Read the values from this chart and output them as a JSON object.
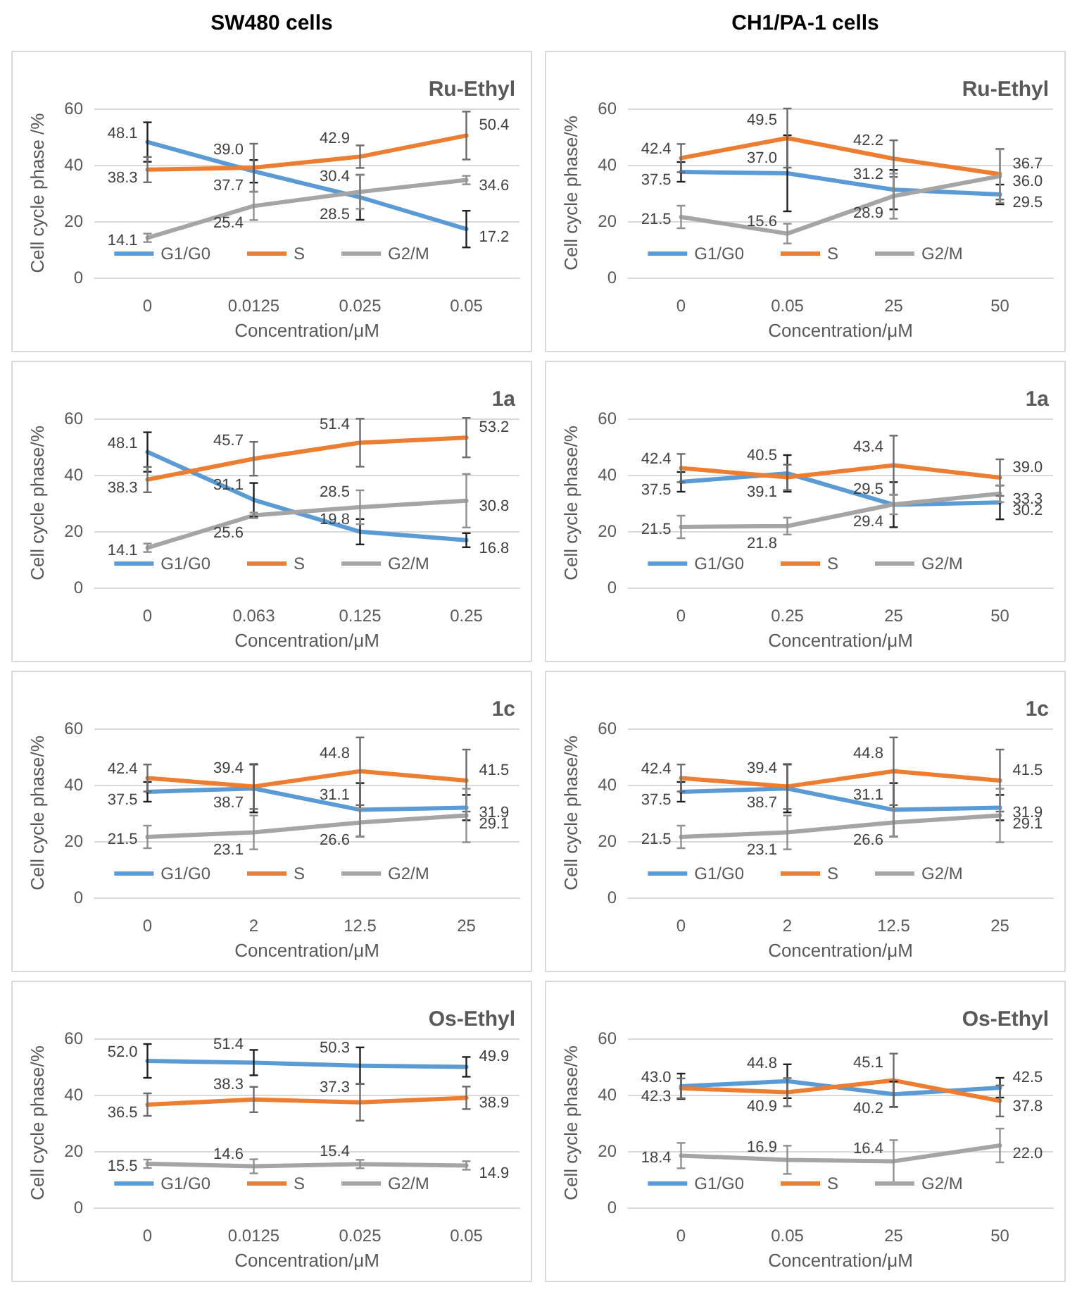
{
  "chart_data": [
    {
      "type": "line",
      "annotations": [
        "SW480 cells"
      ],
      "title": "Ru-Ethyl",
      "xlabel": "Concentration/μM",
      "ylabel": "Cell cycle phase /%",
      "categories": [
        "0",
        "0.0125",
        "0.025",
        "0.05"
      ],
      "ylim": [
        0,
        60
      ],
      "yticks": [
        0,
        20,
        40,
        60
      ],
      "grid": "y",
      "legend": "bottom",
      "marker": "none",
      "data_labels": true,
      "series": [
        {
          "name": "G1/G0",
          "color": "#5b9bd5",
          "values": [
            48.1,
            37.7,
            28.5,
            17.2
          ],
          "errors": [
            7,
            4,
            8,
            6.5
          ]
        },
        {
          "name": "S",
          "color": "#ed7d31",
          "values": [
            38.3,
            39.0,
            42.9,
            50.4
          ],
          "errors": [
            4.5,
            8.5,
            4,
            8.5
          ],
          "value_labels": [
            "38.3",
            "39.0",
            "42.9",
            "50.4"
          ]
        },
        {
          "name": "G2/M",
          "color": "#a5a5a5",
          "values": [
            14.1,
            25.4,
            30.4,
            34.6
          ],
          "errors": [
            1.5,
            5,
            6,
            1.5
          ]
        }
      ]
    },
    {
      "type": "line",
      "annotations": [
        "CH1/PA-1 cells"
      ],
      "title": "Ru-Ethyl",
      "xlabel": "Concentration/μM",
      "ylabel": "Cell cycle phase/%",
      "categories": [
        "0",
        "0.05",
        "25",
        "50"
      ],
      "ylim": [
        0,
        60
      ],
      "yticks": [
        0,
        20,
        40,
        60
      ],
      "grid": "y",
      "legend": "bottom",
      "marker": "none",
      "data_labels": true,
      "series": [
        {
          "name": "G1/G0",
          "color": "#5b9bd5",
          "values": [
            37.5,
            37.0,
            31.2,
            29.5
          ],
          "errors": [
            3.5,
            13.5,
            7,
            3.5
          ],
          "value_labels": [
            "37.5",
            "37.0",
            "31.2",
            "29.5"
          ]
        },
        {
          "name": "S",
          "color": "#ed7d31",
          "values": [
            42.4,
            49.5,
            42.2,
            36.7
          ],
          "errors": [
            5,
            10.5,
            6.5,
            9
          ]
        },
        {
          "name": "G2/M",
          "color": "#a5a5a5",
          "values": [
            21.5,
            15.6,
            28.9,
            36.0
          ],
          "errors": [
            4,
            3.5,
            8,
            9.5
          ],
          "value_labels": [
            "21.5",
            "15.6",
            "28.9",
            "36.0"
          ]
        }
      ]
    },
    {
      "type": "line",
      "title": "1a",
      "xlabel": "Concentration/μM",
      "ylabel": "Cell cycle phase/%",
      "categories": [
        "0",
        "0.063",
        "0.125",
        "0.25"
      ],
      "ylim": [
        0,
        60
      ],
      "yticks": [
        0,
        20,
        40,
        60
      ],
      "grid": "y",
      "legend": "bottom",
      "marker": "none",
      "data_labels": true,
      "series": [
        {
          "name": "G1/G0",
          "color": "#5b9bd5",
          "values": [
            48.1,
            31.1,
            19.8,
            16.8
          ],
          "errors": [
            7,
            6,
            4.5,
            2.5
          ]
        },
        {
          "name": "S",
          "color": "#ed7d31",
          "values": [
            38.3,
            45.7,
            51.4,
            53.2
          ],
          "errors": [
            4.5,
            6,
            8.5,
            7
          ]
        },
        {
          "name": "G2/M",
          "color": "#a5a5a5",
          "values": [
            14.1,
            25.6,
            28.5,
            30.8
          ],
          "errors": [
            1.5,
            1,
            6,
            9.5
          ]
        }
      ]
    },
    {
      "type": "line",
      "title": "1a",
      "xlabel": "Concentration/μM",
      "ylabel": "Cell cycle phase/%",
      "categories": [
        "0",
        "0.25",
        "25",
        "50"
      ],
      "ylim": [
        0,
        60
      ],
      "yticks": [
        0,
        20,
        40,
        60
      ],
      "grid": "y",
      "legend": "bottom",
      "marker": "none",
      "data_labels": true,
      "series": [
        {
          "name": "G1/G0",
          "color": "#5b9bd5",
          "values": [
            37.5,
            40.5,
            29.4,
            30.2
          ],
          "errors": [
            3.5,
            6.5,
            8,
            6
          ]
        },
        {
          "name": "S",
          "color": "#ed7d31",
          "values": [
            42.4,
            39.1,
            43.4,
            39.0
          ],
          "errors": [
            5,
            4.5,
            10.5,
            6.5
          ],
          "value_labels": [
            "42.4",
            "39.1",
            "43.4",
            "39.0"
          ]
        },
        {
          "name": "G2/M",
          "color": "#a5a5a5",
          "values": [
            21.5,
            21.8,
            29.5,
            33.3
          ],
          "errors": [
            4,
            3,
            3.5,
            3
          ]
        }
      ]
    },
    {
      "type": "line",
      "title": "1c",
      "xlabel": "Concentration/μM",
      "ylabel": "Cell cycle phase/%",
      "categories": [
        "0",
        "2",
        "12.5",
        "25"
      ],
      "ylim": [
        0,
        60
      ],
      "yticks": [
        0,
        20,
        40,
        60
      ],
      "grid": "y",
      "legend": "bottom",
      "marker": "none",
      "data_labels": true,
      "series": [
        {
          "name": "G1/G0",
          "color": "#5b9bd5",
          "values": [
            37.5,
            38.7,
            31.1,
            31.9
          ],
          "errors": [
            3.5,
            8.5,
            9.5,
            4.5
          ]
        },
        {
          "name": "S",
          "color": "#ed7d31",
          "values": [
            42.4,
            39.4,
            44.8,
            41.5
          ],
          "errors": [
            4.8,
            8,
            12,
            11
          ]
        },
        {
          "name": "G2/M",
          "color": "#a5a5a5",
          "values": [
            21.5,
            23.1,
            26.6,
            29.1
          ],
          "errors": [
            4,
            6,
            5,
            9.5
          ]
        }
      ]
    },
    {
      "type": "line",
      "title": "1c",
      "xlabel": "Concentration/μM",
      "ylabel": "Cell cycle phase/%",
      "categories": [
        "0",
        "2",
        "12.5",
        "25"
      ],
      "ylim": [
        0,
        60
      ],
      "yticks": [
        0,
        20,
        40,
        60
      ],
      "grid": "y",
      "legend": "bottom",
      "marker": "none",
      "data_labels": true,
      "series": [
        {
          "name": "G1/G0",
          "color": "#5b9bd5",
          "values": [
            37.5,
            38.7,
            31.1,
            31.9
          ],
          "errors": [
            3.5,
            8.5,
            9.5,
            4.5
          ]
        },
        {
          "name": "S",
          "color": "#ed7d31",
          "values": [
            42.4,
            39.4,
            44.8,
            41.5
          ],
          "errors": [
            4.8,
            8,
            12,
            11
          ]
        },
        {
          "name": "G2/M",
          "color": "#a5a5a5",
          "values": [
            21.5,
            23.1,
            26.6,
            29.1
          ],
          "errors": [
            4,
            6,
            5,
            9.5
          ]
        }
      ]
    },
    {
      "type": "line",
      "title": "Os-Ethyl",
      "xlabel": "Concentration/μM",
      "ylabel": "Cell cycle phase/%",
      "categories": [
        "0",
        "0.0125",
        "0.025",
        "0.05"
      ],
      "ylim": [
        0,
        60
      ],
      "yticks": [
        0,
        20,
        40,
        60
      ],
      "grid": "y",
      "legend": "bottom",
      "marker": "none",
      "data_labels": true,
      "series": [
        {
          "name": "G1/G0",
          "color": "#5b9bd5",
          "values": [
            52.0,
            51.4,
            50.3,
            49.9
          ],
          "errors": [
            6,
            4.5,
            6.5,
            3.5
          ],
          "value_labels": [
            "52.0",
            "51.4",
            "50.3",
            "49.9"
          ]
        },
        {
          "name": "S",
          "color": "#ed7d31",
          "values": [
            36.5,
            38.3,
            37.3,
            38.9
          ],
          "errors": [
            4,
            4.5,
            6.5,
            4
          ]
        },
        {
          "name": "G2/M",
          "color": "#a5a5a5",
          "values": [
            15.5,
            14.6,
            15.4,
            14.9
          ],
          "errors": [
            1.5,
            2.5,
            1.5,
            1.5
          ]
        }
      ]
    },
    {
      "type": "line",
      "title": "Os-Ethyl",
      "xlabel": "Concentration/μM",
      "ylabel": "Cell cycle phase/%",
      "categories": [
        "0",
        "0.05",
        "25",
        "50"
      ],
      "ylim": [
        0,
        60
      ],
      "yticks": [
        0,
        20,
        40,
        60
      ],
      "grid": "y",
      "legend": "bottom",
      "marker": "none",
      "data_labels": true,
      "series": [
        {
          "name": "G1/G0",
          "color": "#5b9bd5",
          "values": [
            43.0,
            44.8,
            40.2,
            42.5
          ],
          "errors": [
            4.5,
            6,
            4.5,
            3.5
          ],
          "value_labels": [
            "43.0",
            "44.8",
            "40.2",
            "42.5"
          ]
        },
        {
          "name": "S",
          "color": "#ed7d31",
          "values": [
            42.3,
            40.9,
            45.1,
            37.8
          ],
          "errors": [
            3.5,
            5,
            9.5,
            5.5
          ]
        },
        {
          "name": "G2/M",
          "color": "#a5a5a5",
          "values": [
            18.4,
            16.9,
            16.4,
            22.0
          ],
          "errors": [
            4.5,
            5,
            7.5,
            6
          ],
          "value_labels": [
            "18.4",
            "16.9",
            "16.4",
            "22.0"
          ]
        }
      ]
    }
  ]
}
